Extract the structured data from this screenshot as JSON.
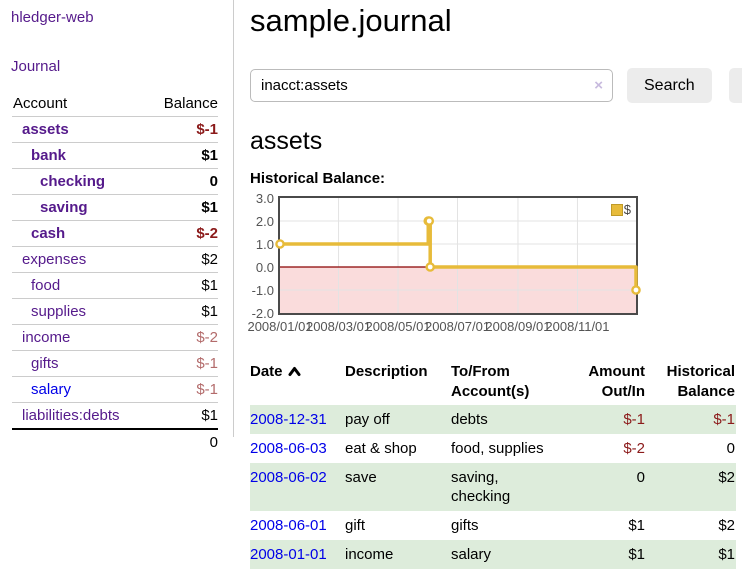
{
  "app": {
    "title": "hledger-web"
  },
  "sidebar": {
    "journal_link": "Journal",
    "accounts": {
      "header_account": "Account",
      "header_balance": "Balance",
      "rows": [
        {
          "name": "assets",
          "balance": "$-1"
        },
        {
          "name": "bank",
          "balance": "$1"
        },
        {
          "name": "checking",
          "balance": "0"
        },
        {
          "name": "saving",
          "balance": "$1"
        },
        {
          "name": "cash",
          "balance": "$-2"
        },
        {
          "name": "expenses",
          "balance": "$2"
        },
        {
          "name": "food",
          "balance": "$1"
        },
        {
          "name": "supplies",
          "balance": "$1"
        },
        {
          "name": "income",
          "balance": "$-2"
        },
        {
          "name": "gifts",
          "balance": "$-1"
        },
        {
          "name": "salary",
          "balance": "$-1"
        },
        {
          "name": "liabilities:debts",
          "balance": "$1"
        }
      ],
      "total": "0"
    }
  },
  "main": {
    "title": "sample.journal",
    "search": {
      "value": "inacct:assets",
      "clear_icon": "×",
      "button_label": "Search",
      "help_label": "?"
    },
    "account_heading": "assets",
    "chart_title": "Historical Balance:",
    "register": {
      "headers": {
        "date": "Date",
        "description": "Description",
        "tofrom": "To/From\nAccount(s)",
        "amount": "Amount\nOut/In",
        "balance": "Historical\nBalance"
      },
      "rows": [
        {
          "date": "2008-12-31",
          "description": "pay off",
          "accounts": "debts",
          "amount": "$-1",
          "balance": "$-1"
        },
        {
          "date": "2008-06-03",
          "description": "eat & shop",
          "accounts": "food, supplies",
          "amount": "$-2",
          "balance": "0"
        },
        {
          "date": "2008-06-02",
          "description": "save",
          "accounts": "saving,\nchecking",
          "amount": "0",
          "balance": "$2"
        },
        {
          "date": "2008-06-01",
          "description": "gift",
          "accounts": "gifts",
          "amount": "$1",
          "balance": "$2"
        },
        {
          "date": "2008-01-01",
          "description": "income",
          "accounts": "salary",
          "amount": "$1",
          "balance": "$1"
        }
      ]
    }
  },
  "chart_data": {
    "type": "line",
    "mode": "steps",
    "title": "Historical Balance:",
    "series": [
      {
        "name": "$",
        "color": "#e7bb3a",
        "points": [
          {
            "x": "2008-01-01",
            "y": 1
          },
          {
            "x": "2008-06-01",
            "y": 2
          },
          {
            "x": "2008-06-02",
            "y": 2
          },
          {
            "x": "2008-06-03",
            "y": 0
          },
          {
            "x": "2008-12-31",
            "y": -1
          }
        ]
      }
    ],
    "xlim": [
      "2008-01-01",
      "2008-12-31"
    ],
    "ylim": [
      -2,
      3
    ],
    "y_ticks": [
      "3.0",
      "2.0",
      "1.0",
      "0.0",
      "-1.0",
      "-2.0"
    ],
    "x_ticks": [
      "2008/01/01",
      "2008/03/01",
      "2008/05/01",
      "2008/07/01",
      "2008/09/01",
      "2008/11/01"
    ],
    "grid": true,
    "negative_region_color": "#fadcdc",
    "zero_line_color": "#8b0000",
    "gridline_color": "#e3e3e3",
    "legend": {
      "label": "$",
      "swatch_color": "#e7bb3a",
      "position": "top-right"
    }
  }
}
